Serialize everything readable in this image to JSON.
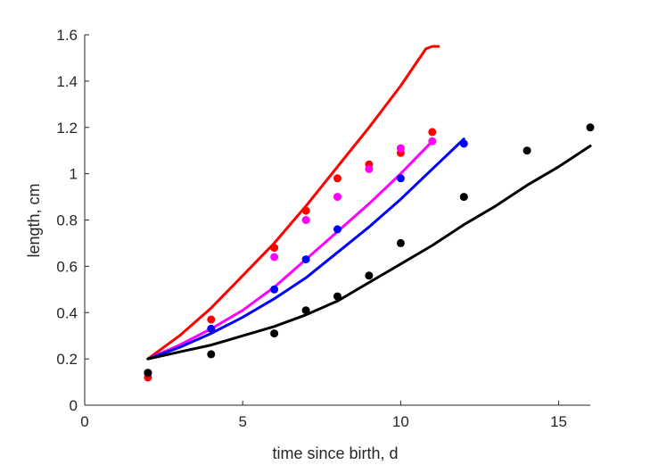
{
  "chart_data": {
    "type": "scatter",
    "title": "",
    "xlabel": "time since birth, d",
    "ylabel": "length, cm",
    "xlim": [
      0,
      16
    ],
    "ylim": [
      0,
      1.6
    ],
    "xticks": [
      0,
      5,
      10,
      15
    ],
    "xtick_labels": [
      "0",
      "5",
      "10",
      "15"
    ],
    "yticks": [
      0,
      0.2,
      0.4,
      0.6,
      0.8,
      1.0,
      1.2,
      1.4,
      1.6
    ],
    "ytick_labels": [
      "0",
      "0.2",
      "0.4",
      "0.6",
      "0.8",
      "1",
      "1.2",
      "1.4",
      "1.6"
    ],
    "grid": false,
    "legend": false,
    "series": [
      {
        "color": "#ff0000",
        "points": [
          [
            2,
            0.12
          ],
          [
            4,
            0.37
          ],
          [
            6,
            0.68
          ],
          [
            7,
            0.84
          ],
          [
            8,
            0.98
          ],
          [
            9,
            1.04
          ],
          [
            10,
            1.09
          ],
          [
            11,
            1.18
          ]
        ],
        "curve": [
          [
            2,
            0.2
          ],
          [
            3,
            0.3
          ],
          [
            4,
            0.42
          ],
          [
            5,
            0.56
          ],
          [
            6,
            0.7
          ],
          [
            7,
            0.86
          ],
          [
            8,
            1.03
          ],
          [
            9,
            1.2
          ],
          [
            10,
            1.38
          ],
          [
            10.5,
            1.48
          ],
          [
            10.8,
            1.54
          ],
          [
            11,
            1.55
          ],
          [
            11.2,
            1.55
          ]
        ]
      },
      {
        "color": "#ff00ff",
        "points": [
          [
            2,
            0.14
          ],
          [
            4,
            0.33
          ],
          [
            6,
            0.64
          ],
          [
            7,
            0.8
          ],
          [
            8,
            0.9
          ],
          [
            9,
            1.02
          ],
          [
            10,
            1.11
          ],
          [
            11,
            1.14
          ]
        ],
        "curve": [
          [
            2,
            0.2
          ],
          [
            3,
            0.26
          ],
          [
            4,
            0.33
          ],
          [
            5,
            0.41
          ],
          [
            6,
            0.51
          ],
          [
            7,
            0.63
          ],
          [
            8,
            0.75
          ],
          [
            9,
            0.87
          ],
          [
            10,
            1.0
          ],
          [
            11,
            1.14
          ]
        ]
      },
      {
        "color": "#0000ff",
        "points": [
          [
            2,
            0.14
          ],
          [
            4,
            0.33
          ],
          [
            6,
            0.5
          ],
          [
            7,
            0.63
          ],
          [
            8,
            0.76
          ],
          [
            10,
            0.98
          ],
          [
            12,
            1.13
          ]
        ],
        "curve": [
          [
            2,
            0.2
          ],
          [
            3,
            0.25
          ],
          [
            4,
            0.31
          ],
          [
            5,
            0.38
          ],
          [
            6,
            0.46
          ],
          [
            7,
            0.55
          ],
          [
            8,
            0.66
          ],
          [
            9,
            0.77
          ],
          [
            10,
            0.89
          ],
          [
            11,
            1.02
          ],
          [
            12,
            1.15
          ]
        ]
      },
      {
        "color": "#000000",
        "points": [
          [
            2,
            0.14
          ],
          [
            4,
            0.22
          ],
          [
            6,
            0.31
          ],
          [
            7,
            0.41
          ],
          [
            8,
            0.47
          ],
          [
            9,
            0.56
          ],
          [
            10,
            0.7
          ],
          [
            12,
            0.9
          ],
          [
            14,
            1.1
          ],
          [
            16,
            1.2
          ]
        ],
        "curve": [
          [
            2,
            0.2
          ],
          [
            3,
            0.23
          ],
          [
            4,
            0.26
          ],
          [
            5,
            0.3
          ],
          [
            6,
            0.34
          ],
          [
            7,
            0.39
          ],
          [
            8,
            0.45
          ],
          [
            9,
            0.53
          ],
          [
            10,
            0.61
          ],
          [
            11,
            0.69
          ],
          [
            12,
            0.78
          ],
          [
            13,
            0.86
          ],
          [
            14,
            0.95
          ],
          [
            15,
            1.03
          ],
          [
            16,
            1.12
          ]
        ]
      }
    ]
  }
}
